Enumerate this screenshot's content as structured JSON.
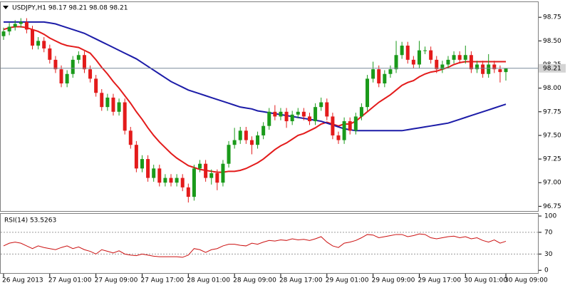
{
  "chart_data": [
    {
      "type": "candlestick",
      "title": "USDJPY,H1  98.17 98.21 98.08 98.21",
      "categories": [
        "26 Aug 2013",
        null,
        null,
        null,
        null,
        null,
        null,
        null,
        "27 Aug 01:00",
        null,
        null,
        null,
        null,
        null,
        null,
        null,
        "27 Aug 09:00",
        null,
        null,
        null,
        null,
        null,
        null,
        null,
        "27 Aug 17:00",
        null,
        null,
        null,
        null,
        null,
        null,
        null,
        "28 Aug 01:00",
        null,
        null,
        null,
        null,
        null,
        null,
        null,
        "28 Aug 09:00",
        null,
        null,
        null,
        null,
        null,
        null,
        null,
        "28 Aug 17:00",
        null,
        null,
        null,
        null,
        null,
        null,
        null,
        "29 Aug 01:00",
        null,
        null,
        null,
        null,
        null,
        null,
        null,
        "29 Aug 09:00",
        null,
        null,
        null,
        null,
        null,
        null,
        null,
        "29 Aug 17:00",
        null,
        null,
        null,
        null,
        null,
        null,
        null,
        "30 Aug 01:00",
        null,
        null,
        null,
        null,
        null,
        null,
        "30 Aug 09:00"
      ],
      "open": [
        98.55,
        98.6,
        98.65,
        98.68,
        98.7,
        98.62,
        98.45,
        98.5,
        98.42,
        98.3,
        98.2,
        98.05,
        98.15,
        98.3,
        98.35,
        98.2,
        98.1,
        97.95,
        97.8,
        97.9,
        97.75,
        97.85,
        97.55,
        97.4,
        97.15,
        97.25,
        97.05,
        97.15,
        97.0,
        97.05,
        97.0,
        97.05,
        96.95,
        96.85,
        97.15,
        97.2,
        97.05,
        97.1,
        97.0,
        97.2,
        97.4,
        97.45,
        97.55,
        97.45,
        97.4,
        97.5,
        97.6,
        97.75,
        97.7,
        97.75,
        97.65,
        97.72,
        97.75,
        97.7,
        97.65,
        97.8,
        97.85,
        97.7,
        97.5,
        97.45,
        97.65,
        97.55,
        97.7,
        97.8,
        98.1,
        98.2,
        98.05,
        98.15,
        98.2,
        98.35,
        98.45,
        98.3,
        98.25,
        98.4,
        98.4,
        98.3,
        98.2,
        98.25,
        98.3,
        98.35,
        98.3,
        98.35,
        98.2,
        98.25,
        98.15,
        98.25,
        98.2,
        98.17
      ],
      "high": [
        98.64,
        98.69,
        98.72,
        98.74,
        98.74,
        98.66,
        98.54,
        98.54,
        98.46,
        98.34,
        98.24,
        98.19,
        98.34,
        98.39,
        98.39,
        98.24,
        98.14,
        97.99,
        97.94,
        97.94,
        97.89,
        97.89,
        97.59,
        97.44,
        97.29,
        97.29,
        97.19,
        97.19,
        97.09,
        97.09,
        97.09,
        97.09,
        96.99,
        97.19,
        97.24,
        97.24,
        97.14,
        97.14,
        97.24,
        97.44,
        97.58,
        97.59,
        97.59,
        97.49,
        97.54,
        97.64,
        97.79,
        97.82,
        97.79,
        97.79,
        97.76,
        97.79,
        97.79,
        97.74,
        97.84,
        97.9,
        97.89,
        97.74,
        97.54,
        97.69,
        97.69,
        97.74,
        97.84,
        98.14,
        98.28,
        98.24,
        98.19,
        98.24,
        98.5,
        98.49,
        98.49,
        98.34,
        98.5,
        98.44,
        98.44,
        98.34,
        98.29,
        98.34,
        98.39,
        98.39,
        98.45,
        98.39,
        98.29,
        98.29,
        98.36,
        98.29,
        98.24,
        98.21
      ],
      "low": [
        98.51,
        98.56,
        98.61,
        98.64,
        98.58,
        98.41,
        98.41,
        98.38,
        98.26,
        98.16,
        98.01,
        98.01,
        98.11,
        98.26,
        98.16,
        98.06,
        97.91,
        97.76,
        97.76,
        97.71,
        97.71,
        97.51,
        97.36,
        97.11,
        97.11,
        97.01,
        97.01,
        96.96,
        96.96,
        96.96,
        96.96,
        96.91,
        96.79,
        96.81,
        97.11,
        97.01,
        96.98,
        96.92,
        96.96,
        97.16,
        97.36,
        97.41,
        97.41,
        97.3,
        97.36,
        97.46,
        97.56,
        97.66,
        97.66,
        97.58,
        97.61,
        97.68,
        97.66,
        97.61,
        97.61,
        97.76,
        97.66,
        97.46,
        97.41,
        97.41,
        97.51,
        97.51,
        97.66,
        97.76,
        98.06,
        98.01,
        98.01,
        98.11,
        98.16,
        98.31,
        98.26,
        98.21,
        98.21,
        98.36,
        98.26,
        98.16,
        98.16,
        98.21,
        98.26,
        98.26,
        98.26,
        98.16,
        98.16,
        98.11,
        98.11,
        98.16,
        98.06,
        98.08
      ],
      "close": [
        98.6,
        98.65,
        98.68,
        98.7,
        98.62,
        98.45,
        98.5,
        98.42,
        98.3,
        98.2,
        98.05,
        98.15,
        98.3,
        98.35,
        98.2,
        98.1,
        97.95,
        97.8,
        97.9,
        97.75,
        97.85,
        97.55,
        97.4,
        97.15,
        97.25,
        97.05,
        97.15,
        97.0,
        97.05,
        97.0,
        97.05,
        96.95,
        96.85,
        97.15,
        97.2,
        97.05,
        97.1,
        97.0,
        97.2,
        97.4,
        97.45,
        97.55,
        97.45,
        97.4,
        97.5,
        97.6,
        97.75,
        97.7,
        97.75,
        97.65,
        97.72,
        97.75,
        97.7,
        97.65,
        97.8,
        97.85,
        97.7,
        97.5,
        97.45,
        97.65,
        97.55,
        97.7,
        97.8,
        98.1,
        98.2,
        98.05,
        98.15,
        98.2,
        98.35,
        98.45,
        98.3,
        98.25,
        98.4,
        98.4,
        98.3,
        98.2,
        98.25,
        98.3,
        98.35,
        98.3,
        98.35,
        98.2,
        98.25,
        98.15,
        98.25,
        98.2,
        98.17,
        98.21
      ],
      "up_color": "#1a9a1a",
      "down_color": "#e31b1b",
      "series": [
        {
          "color": "#e31b1b",
          "values": [
            98.62,
            98.64,
            98.65,
            98.65,
            98.64,
            98.62,
            98.6,
            98.57,
            98.53,
            98.5,
            98.47,
            98.45,
            98.44,
            98.43,
            98.4,
            98.37,
            98.3,
            98.22,
            98.15,
            98.07,
            98.0,
            97.92,
            97.84,
            97.75,
            97.67,
            97.58,
            97.5,
            97.43,
            97.37,
            97.31,
            97.26,
            97.22,
            97.18,
            97.16,
            97.14,
            97.13,
            97.12,
            97.11,
            97.11,
            97.12,
            97.12,
            97.13,
            97.15,
            97.18,
            97.21,
            97.25,
            97.3,
            97.35,
            97.39,
            97.42,
            97.46,
            97.5,
            97.52,
            97.55,
            97.58,
            97.62,
            97.64,
            97.62,
            97.6,
            97.62,
            97.62,
            97.65,
            97.7,
            97.75,
            97.8,
            97.85,
            97.89,
            97.93,
            97.98,
            98.03,
            98.06,
            98.08,
            98.12,
            98.15,
            98.17,
            98.18,
            98.2,
            98.22,
            98.25,
            98.27,
            98.28,
            98.28,
            98.28,
            98.28,
            98.28,
            98.28,
            98.28,
            98.28
          ]
        },
        {
          "color": "#1c1ca8",
          "values": [
            98.7,
            98.7,
            98.7,
            98.7,
            98.7,
            98.7,
            98.7,
            98.7,
            98.69,
            98.68,
            98.66,
            98.64,
            98.62,
            98.6,
            98.58,
            98.55,
            98.52,
            98.49,
            98.46,
            98.43,
            98.4,
            98.37,
            98.34,
            98.31,
            98.27,
            98.23,
            98.19,
            98.15,
            98.11,
            98.07,
            98.04,
            98.01,
            97.98,
            97.96,
            97.94,
            97.92,
            97.9,
            97.88,
            97.86,
            97.84,
            97.82,
            97.8,
            97.79,
            97.78,
            97.76,
            97.75,
            97.74,
            97.73,
            97.72,
            97.71,
            97.7,
            97.69,
            97.68,
            97.67,
            97.66,
            97.65,
            97.63,
            97.61,
            97.59,
            97.57,
            97.56,
            97.55,
            97.55,
            97.55,
            97.55,
            97.55,
            97.55,
            97.55,
            97.55,
            97.55,
            97.56,
            97.57,
            97.58,
            97.59,
            97.6,
            97.61,
            97.62,
            97.63,
            97.65,
            97.67,
            97.69,
            97.71,
            97.73,
            97.75,
            97.77,
            97.79,
            97.81,
            97.83
          ]
        }
      ],
      "current_price": 98.21,
      "ylim": [
        96.7,
        98.91
      ],
      "yticks": [
        {
          "value": 96.75,
          "label": "96.75"
        },
        {
          "value": 97,
          "label": "97.00"
        },
        {
          "value": 97.25,
          "label": "97.25"
        },
        {
          "value": 97.5,
          "label": "97.50"
        },
        {
          "value": 97.75,
          "label": "97.75"
        },
        {
          "value": 98,
          "label": "98.00"
        },
        {
          "value": 98.25,
          "label": "98.25"
        },
        {
          "value": 98.5,
          "label": "98.50"
        },
        {
          "value": 98.75,
          "label": "98.75"
        }
      ]
    },
    {
      "type": "line",
      "title": "RSI(14) 53.5263",
      "color": "#cc1111",
      "values": [
        45,
        50,
        52,
        50,
        45,
        40,
        45,
        42,
        40,
        38,
        42,
        45,
        40,
        43,
        38,
        35,
        30,
        38,
        35,
        32,
        36,
        30,
        28,
        27,
        30,
        28,
        26,
        25,
        25,
        25,
        25,
        24,
        28,
        40,
        38,
        33,
        38,
        40,
        45,
        48,
        48,
        46,
        45,
        50,
        48,
        52,
        55,
        54,
        56,
        55,
        58,
        56,
        57,
        55,
        58,
        62,
        52,
        45,
        42,
        50,
        52,
        55,
        60,
        66,
        65,
        60,
        62,
        64,
        66,
        66,
        62,
        64,
        67,
        66,
        60,
        58,
        60,
        62,
        63,
        60,
        62,
        58,
        60,
        55,
        52,
        56,
        50,
        53.5263
      ],
      "levels": [
        70,
        30
      ],
      "ylim": [
        -5,
        104
      ],
      "yticks": [
        100,
        70,
        30,
        0
      ]
    }
  ]
}
